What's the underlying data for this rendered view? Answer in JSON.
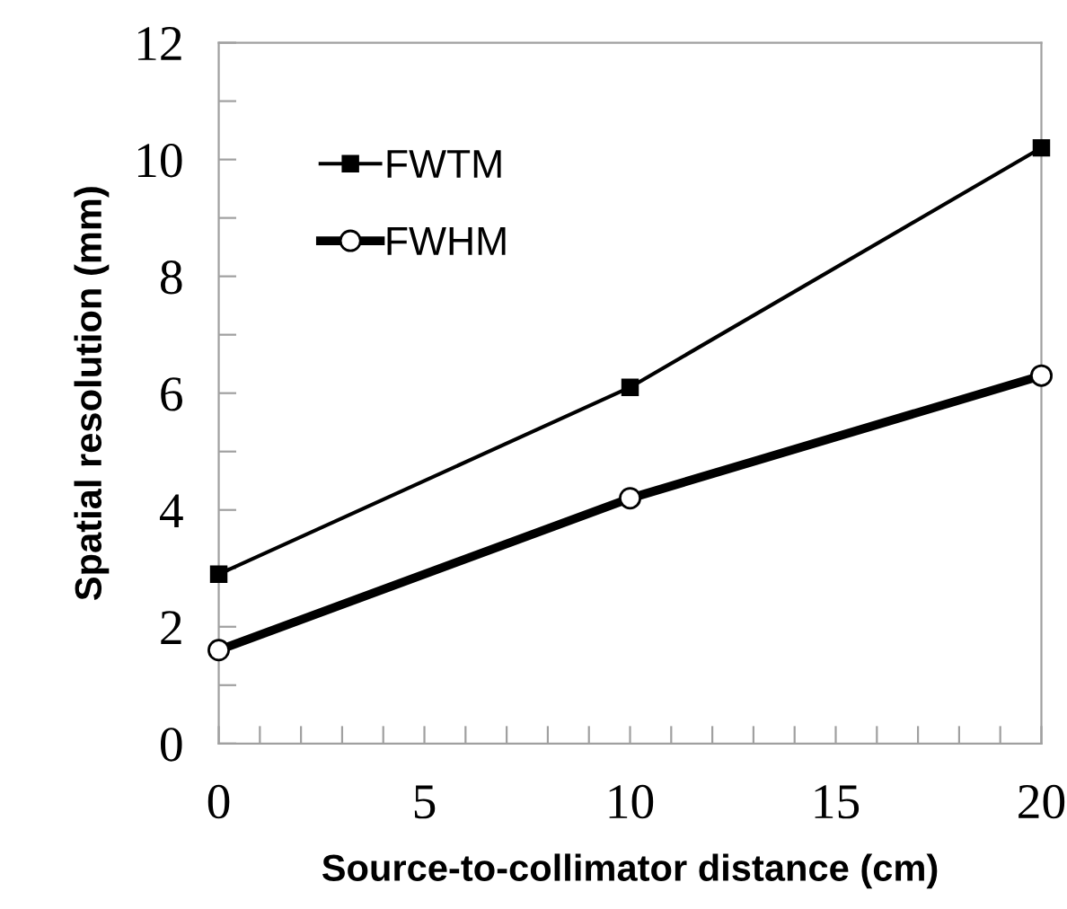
{
  "chart_data": {
    "type": "line",
    "xlabel": "Source-to-collimator distance (cm)",
    "ylabel": "Spatial resolution (mm)",
    "x": [
      0,
      10,
      20
    ],
    "series": [
      {
        "name": "FWTM",
        "color": "#000000",
        "marker": "square",
        "values": [
          2.9,
          6.1,
          10.2
        ]
      },
      {
        "name": "FWHM",
        "color": "#000000",
        "marker": "circle",
        "values": [
          1.6,
          4.2,
          6.3
        ]
      }
    ],
    "xlim": [
      0,
      20
    ],
    "ylim": [
      0,
      12
    ],
    "xticks": [
      0,
      {
        "value": 1,
        "label": null
      },
      {
        "value": 2,
        "label": null
      },
      {
        "value": 3,
        "label": null
      },
      {
        "value": 4,
        "label": null
      },
      5,
      {
        "value": 6,
        "label": null
      },
      {
        "value": 7,
        "label": null
      },
      {
        "value": 8,
        "label": null
      },
      {
        "value": 9,
        "label": null
      },
      10,
      {
        "value": 11,
        "label": null
      },
      {
        "value": 12,
        "label": null
      },
      {
        "value": 13,
        "label": null
      },
      {
        "value": 14,
        "label": null
      },
      15,
      {
        "value": 16,
        "label": null
      },
      {
        "value": 17,
        "label": null
      },
      {
        "value": 18,
        "label": null
      },
      {
        "value": 19,
        "label": null
      },
      20
    ],
    "yticks": [
      0,
      {
        "value": 1,
        "label": null
      },
      2,
      {
        "value": 3,
        "label": null
      },
      4,
      {
        "value": 5,
        "label": null
      },
      6,
      {
        "value": 7,
        "label": null
      },
      8,
      {
        "value": 9,
        "label": null
      },
      10,
      {
        "value": 11,
        "label": null
      },
      12
    ],
    "grid": false,
    "legend": "top left",
    "line_style": "solid"
  }
}
